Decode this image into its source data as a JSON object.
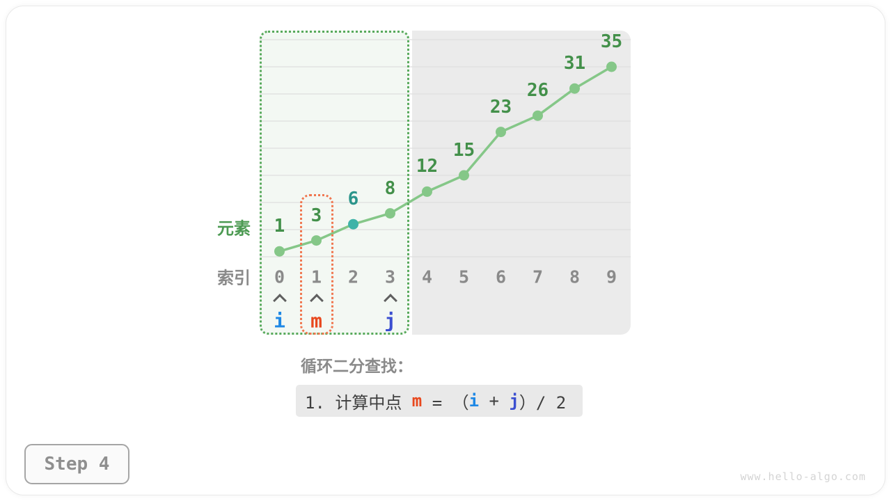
{
  "card": {
    "step_label": "Step 4",
    "watermark": "www.hello-algo.com"
  },
  "caption": "循环二分查找：",
  "formula": {
    "tokens": [
      {
        "text": "1. 计算中点 "
      },
      {
        "text": "m",
        "color": "#e8481e"
      },
      {
        "text": " = （"
      },
      {
        "text": "i",
        "color": "#1e88e5"
      },
      {
        "text": " + "
      },
      {
        "text": "j",
        "color": "#3b4fd0"
      },
      {
        "text": "）/ 2"
      }
    ]
  },
  "chart_data": {
    "type": "line",
    "x": [
      0,
      1,
      2,
      3,
      4,
      5,
      6,
      7,
      8,
      9
    ],
    "values": [
      1,
      3,
      6,
      8,
      12,
      15,
      23,
      26,
      31,
      35
    ],
    "row_labels": {
      "element": "元素",
      "index": "索引"
    },
    "highlight": {
      "index": 2,
      "point_color": "#3fb3a8",
      "label_color": "#2b958b"
    },
    "search_range": {
      "from": 0,
      "to": 3
    },
    "mid_index": 1,
    "pointers": [
      {
        "label": "i",
        "index": 0,
        "color": "#1e88e5"
      },
      {
        "label": "m",
        "index": 1,
        "color": "#e8481e"
      },
      {
        "label": "j",
        "index": 3,
        "color": "#3b4fd0"
      }
    ],
    "grid": {
      "min": 0,
      "max": 40,
      "step": 5
    },
    "ylim": [
      0,
      42
    ],
    "legend": "none",
    "colors": {
      "line": "#85c788",
      "point": "#85c788",
      "value_label": "#43904a",
      "index_label": "#8a8a8a",
      "range_fill": "#f3f8f3",
      "range_border": "#57a95b",
      "excluded_fill": "#ebebeb",
      "mid_box_border": "#f0764f",
      "gridline": "#dedede",
      "arrow": "#5f5f5f"
    }
  }
}
